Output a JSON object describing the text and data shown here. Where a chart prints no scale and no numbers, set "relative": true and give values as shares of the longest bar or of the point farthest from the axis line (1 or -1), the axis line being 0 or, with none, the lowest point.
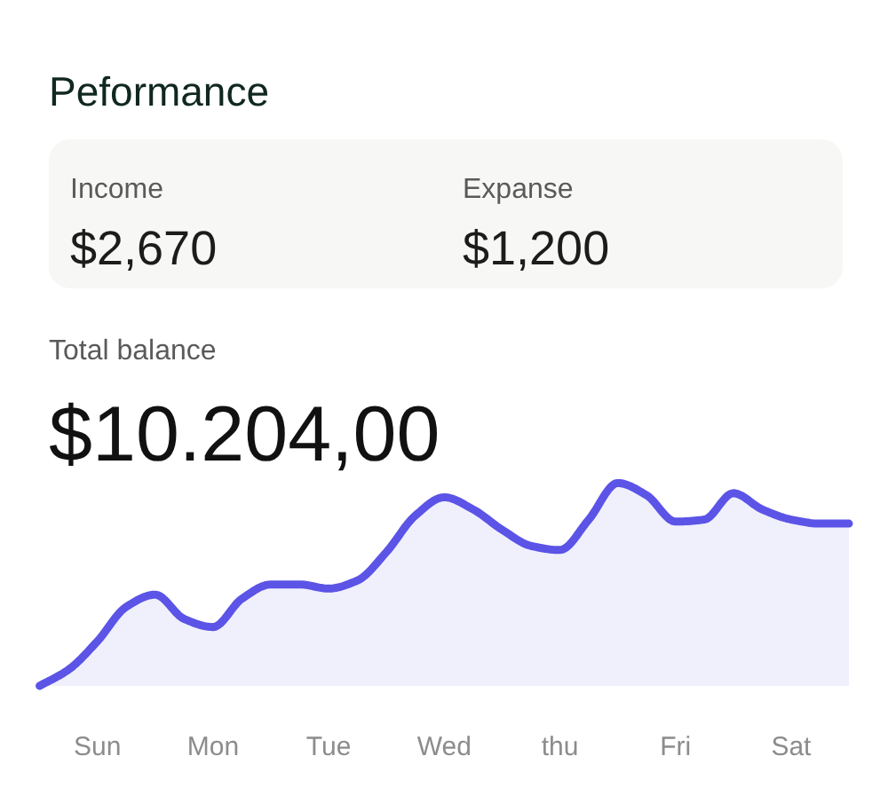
{
  "chart_data": {
    "type": "area",
    "title": "Peformance",
    "annotations": [
      "Income",
      "$2,670",
      "Expanse",
      "$1,200",
      "Total balance",
      "$10.204,00"
    ],
    "relative": true,
    "categories": [
      null,
      null,
      "Sun",
      null,
      null,
      null,
      "Mon",
      null,
      null,
      null,
      "Tue",
      null,
      null,
      null,
      "Wed",
      null,
      null,
      null,
      "thu",
      null,
      null,
      null,
      "Fri",
      null,
      null,
      null,
      "Sat",
      null,
      null
    ],
    "series": [
      {
        "color": "#5b54e6",
        "values": [
          0,
          0.08,
          0.22,
          0.39,
          0.45,
          0.33,
          0.29,
          0.43,
          0.5,
          0.5,
          0.48,
          0.52,
          0.66,
          0.84,
          0.93,
          0.87,
          0.77,
          0.69,
          0.67,
          0.82,
          1,
          0.94,
          0.81,
          0.82,
          0.95,
          0.87,
          0.82,
          0.8,
          0.8
        ]
      }
    ],
    "line_style": "solid"
  }
}
